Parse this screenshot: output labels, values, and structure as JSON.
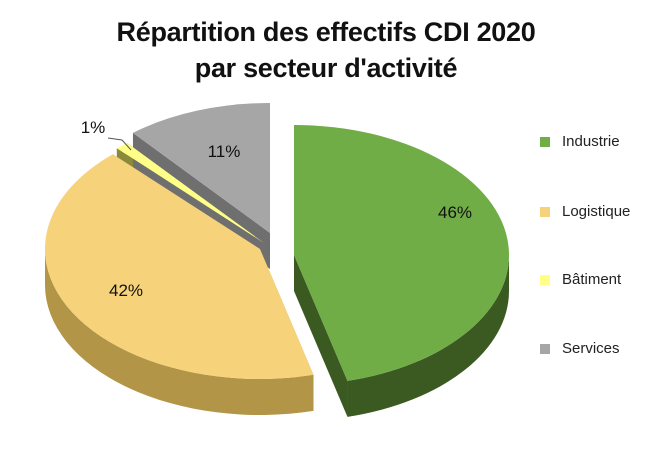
{
  "chart_data": {
    "type": "pie",
    "title_line1": "Répartition des effectifs CDI 2020",
    "title_line2": "par secteur d'activité",
    "slices": [
      {
        "name": "Industrie",
        "value": 46,
        "label": "46%",
        "color": "#70ad47",
        "side": "#3a5a22"
      },
      {
        "name": "Logistique",
        "value": 42,
        "label": "42%",
        "color": "#f6d27a",
        "side": "#b39547"
      },
      {
        "name": "Bâtiment",
        "value": 1,
        "label": "1%",
        "color": "#ffff88",
        "side": "#8a8a3a"
      },
      {
        "name": "Services",
        "value": 11,
        "label": "11%",
        "color": "#a6a6a6",
        "side": "#6f6f6f"
      }
    ],
    "legend_position": "right"
  }
}
